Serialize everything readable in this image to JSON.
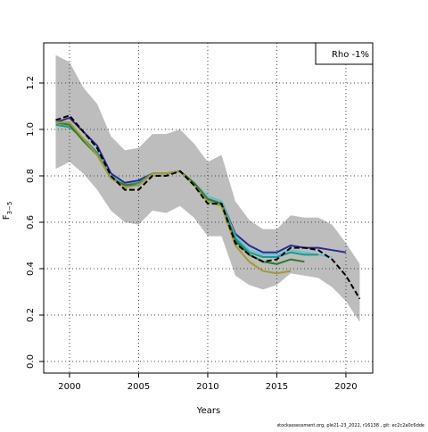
{
  "chart_data": {
    "type": "line",
    "xlabel": "Years",
    "ylabel": "F",
    "ylabel_sub": "3−5",
    "legend_text": "Rho -1%",
    "legend_position": "upper right",
    "footer": "stockassessment.org, ple21-23_2022, r16138 , git: ec2c2a0c6dde",
    "grid": true,
    "xlim": [
      1998.13,
      2021.94
    ],
    "ylim": [
      -0.05,
      1.373
    ],
    "xticks": [
      2000,
      2005,
      2010,
      2015,
      2020
    ],
    "yticks": [
      {
        "value": 0,
        "label": "0.0"
      },
      {
        "value": 0.2,
        "label": "0.2"
      },
      {
        "value": 0.4,
        "label": "0.4"
      },
      {
        "value": 0.6,
        "label": "0.6"
      },
      {
        "value": 0.8,
        "label": "0.8"
      },
      {
        "value": 1,
        "label": "1.0"
      },
      {
        "value": 1.2,
        "label": "1.2"
      }
    ],
    "x": [
      1999,
      2000,
      2001,
      2002,
      2003,
      2004,
      2005,
      2006,
      2007,
      2008,
      2009,
      2010,
      2011,
      2012,
      2013,
      2014,
      2015,
      2016,
      2017,
      2018,
      2019,
      2020,
      2021
    ],
    "band": {
      "color": "#bdbdbd",
      "upper": [
        1.32,
        1.29,
        1.18,
        1.11,
        0.97,
        0.91,
        0.92,
        0.98,
        0.98,
        1.0,
        0.94,
        0.86,
        0.89,
        0.69,
        0.61,
        0.57,
        0.57,
        0.63,
        0.62,
        0.62,
        0.59,
        0.51,
        0.42
      ],
      "lower": [
        0.83,
        0.86,
        0.81,
        0.74,
        0.65,
        0.6,
        0.59,
        0.65,
        0.64,
        0.67,
        0.62,
        0.54,
        0.54,
        0.37,
        0.33,
        0.31,
        0.33,
        0.38,
        0.37,
        0.36,
        0.32,
        0.26,
        0.17
      ]
    },
    "series": [
      {
        "color": "#2a2a9a",
        "values": [
          1.03,
          1.05,
          0.99,
          0.93,
          0.81,
          0.77,
          0.78,
          0.81,
          0.81,
          0.82,
          0.77,
          0.71,
          0.69,
          0.55,
          0.5,
          0.47,
          0.47,
          0.5,
          0.49,
          0.49,
          0.48,
          0.47,
          null
        ]
      },
      {
        "color": "#5cc8d6",
        "values": [
          1.02,
          1.02,
          0.96,
          0.9,
          0.8,
          0.76,
          0.77,
          0.81,
          0.81,
          0.82,
          0.77,
          0.71,
          0.69,
          0.54,
          0.48,
          0.46,
          0.46,
          0.48,
          0.47,
          0.46,
          0.45,
          null,
          null
        ]
      },
      {
        "color": "#1a9a88",
        "values": [
          1.02,
          1.01,
          0.96,
          0.9,
          0.79,
          0.76,
          0.77,
          0.81,
          0.81,
          0.82,
          0.77,
          0.7,
          0.68,
          0.53,
          0.47,
          0.45,
          0.45,
          0.47,
          0.46,
          0.46,
          null,
          null,
          null
        ]
      },
      {
        "color": "#2a7a2a",
        "values": [
          1.03,
          1.02,
          0.95,
          0.89,
          0.79,
          0.76,
          0.76,
          0.81,
          0.81,
          0.82,
          0.77,
          0.7,
          0.68,
          0.52,
          0.46,
          0.43,
          0.42,
          0.44,
          0.43,
          null,
          null,
          null,
          null
        ]
      },
      {
        "color": "#a89a2a",
        "values": [
          1.03,
          1.03,
          0.96,
          0.89,
          0.79,
          0.75,
          0.76,
          0.81,
          0.81,
          0.82,
          0.76,
          0.69,
          0.67,
          0.5,
          0.43,
          0.39,
          0.38,
          0.39,
          null,
          null,
          null,
          null,
          null
        ]
      },
      {
        "color": "#000000",
        "dashed": true,
        "values": [
          1.04,
          1.06,
          0.99,
          0.92,
          0.8,
          0.74,
          0.74,
          0.8,
          0.8,
          0.82,
          0.76,
          0.68,
          0.68,
          0.51,
          0.46,
          0.43,
          0.44,
          0.49,
          0.49,
          0.48,
          0.44,
          0.37,
          0.27
        ]
      }
    ]
  }
}
